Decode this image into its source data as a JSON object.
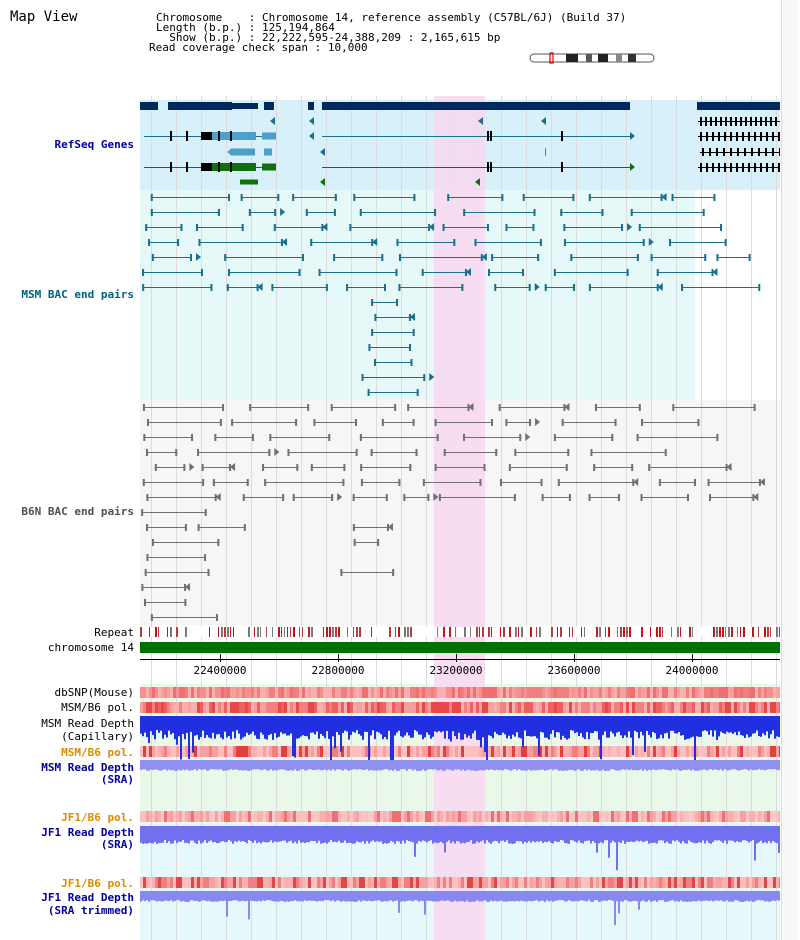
{
  "page": {
    "title": "Map View"
  },
  "info": {
    "chromosome_label": "Chromosome",
    "chromosome_value": "Chromosome 14, reference assembly (C57BL/6J) (Build 37)",
    "length_label": "Length (b.p.)",
    "length_value": "125,194,864",
    "show_label": "Show (b.p.)",
    "show_value": "22,222,595-24,388,209 : 2,165,615 bp",
    "span_label": "Read coverage check span",
    "span_value": "10,000"
  },
  "tracks": {
    "refseq": "RefSeq Genes",
    "msm_bac": "MSM BAC end pairs",
    "b6n_bac": "B6N BAC end pairs",
    "repeat": "Repeat",
    "chromosome": "chromosome 14",
    "dbsnp": "dbSNP(Mouse)",
    "msm_b6_pol_1": "MSM/B6 pol.",
    "msm_depth_cap_1": "MSM Read Depth",
    "msm_depth_cap_2": "(Capillary)",
    "msm_b6_pol_2": "MSM/B6 pol.",
    "msm_depth_sra_1": "MSM Read Depth",
    "msm_depth_sra_2": "(SRA)",
    "jf1_b6_pol_1": "JF1/B6 pol.",
    "jf1_depth_sra_1": "JF1 Read Depth",
    "jf1_depth_sra_2": "(SRA)",
    "jf1_b6_pol_2": "JF1/B6 pol.",
    "jf1_depth_trim_1": "JF1 Read Depth",
    "jf1_depth_trim_2": "(SRA trimmed)"
  },
  "axis": {
    "ticks": [
      "22400000",
      "22800000",
      "23200000",
      "23600000",
      "24000000"
    ]
  },
  "colors": {
    "gene_navy": "#002a5c",
    "gene_blue": "#4aa0c8",
    "gene_green": "#107010",
    "bac_teal": "#1a6f8a",
    "bac_gray": "#707070",
    "highlight": "#f8d8f0",
    "chrom_green": "#007000",
    "snp_red": "#f06060",
    "depth_blue": "#2030e0",
    "depth_violet": "#7070f0"
  }
}
